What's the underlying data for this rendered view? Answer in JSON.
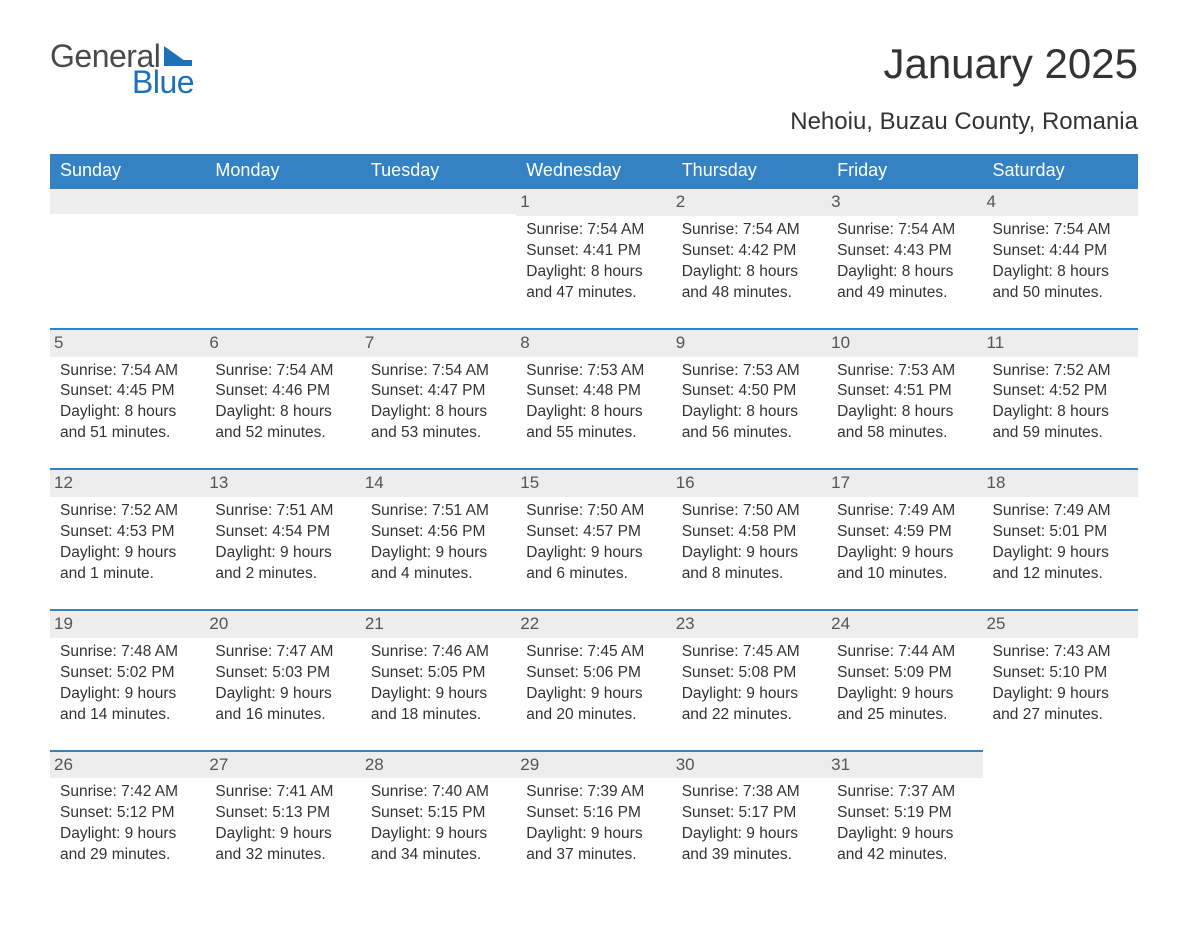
{
  "logo": {
    "text_general": "General",
    "text_blue": "Blue",
    "color_text_gray": "#4a4a4a",
    "color_blue": "#1e70b8"
  },
  "title": "January 2025",
  "subtitle": "Nehoiu, Buzau County, Romania",
  "day_headers": [
    "Sunday",
    "Monday",
    "Tuesday",
    "Wednesday",
    "Thursday",
    "Friday",
    "Saturday"
  ],
  "colors": {
    "header_bg": "#3481c4",
    "header_text": "#ffffff",
    "daynum_bg": "#ededed",
    "body_text": "#333333",
    "border": "#3481c4",
    "background": "#ffffff"
  },
  "typography": {
    "title_fontsize": 42,
    "subtitle_fontsize": 24,
    "header_fontsize": 18,
    "cell_fontsize": 15.5,
    "font_family": "Arial"
  },
  "weeks": [
    [
      null,
      null,
      null,
      {
        "day": "1",
        "sunrise": "Sunrise: 7:54 AM",
        "sunset": "Sunset: 4:41 PM",
        "daylight": "Daylight: 8 hours and 47 minutes."
      },
      {
        "day": "2",
        "sunrise": "Sunrise: 7:54 AM",
        "sunset": "Sunset: 4:42 PM",
        "daylight": "Daylight: 8 hours and 48 minutes."
      },
      {
        "day": "3",
        "sunrise": "Sunrise: 7:54 AM",
        "sunset": "Sunset: 4:43 PM",
        "daylight": "Daylight: 8 hours and 49 minutes."
      },
      {
        "day": "4",
        "sunrise": "Sunrise: 7:54 AM",
        "sunset": "Sunset: 4:44 PM",
        "daylight": "Daylight: 8 hours and 50 minutes."
      }
    ],
    [
      {
        "day": "5",
        "sunrise": "Sunrise: 7:54 AM",
        "sunset": "Sunset: 4:45 PM",
        "daylight": "Daylight: 8 hours and 51 minutes."
      },
      {
        "day": "6",
        "sunrise": "Sunrise: 7:54 AM",
        "sunset": "Sunset: 4:46 PM",
        "daylight": "Daylight: 8 hours and 52 minutes."
      },
      {
        "day": "7",
        "sunrise": "Sunrise: 7:54 AM",
        "sunset": "Sunset: 4:47 PM",
        "daylight": "Daylight: 8 hours and 53 minutes."
      },
      {
        "day": "8",
        "sunrise": "Sunrise: 7:53 AM",
        "sunset": "Sunset: 4:48 PM",
        "daylight": "Daylight: 8 hours and 55 minutes."
      },
      {
        "day": "9",
        "sunrise": "Sunrise: 7:53 AM",
        "sunset": "Sunset: 4:50 PM",
        "daylight": "Daylight: 8 hours and 56 minutes."
      },
      {
        "day": "10",
        "sunrise": "Sunrise: 7:53 AM",
        "sunset": "Sunset: 4:51 PM",
        "daylight": "Daylight: 8 hours and 58 minutes."
      },
      {
        "day": "11",
        "sunrise": "Sunrise: 7:52 AM",
        "sunset": "Sunset: 4:52 PM",
        "daylight": "Daylight: 8 hours and 59 minutes."
      }
    ],
    [
      {
        "day": "12",
        "sunrise": "Sunrise: 7:52 AM",
        "sunset": "Sunset: 4:53 PM",
        "daylight": "Daylight: 9 hours and 1 minute."
      },
      {
        "day": "13",
        "sunrise": "Sunrise: 7:51 AM",
        "sunset": "Sunset: 4:54 PM",
        "daylight": "Daylight: 9 hours and 2 minutes."
      },
      {
        "day": "14",
        "sunrise": "Sunrise: 7:51 AM",
        "sunset": "Sunset: 4:56 PM",
        "daylight": "Daylight: 9 hours and 4 minutes."
      },
      {
        "day": "15",
        "sunrise": "Sunrise: 7:50 AM",
        "sunset": "Sunset: 4:57 PM",
        "daylight": "Daylight: 9 hours and 6 minutes."
      },
      {
        "day": "16",
        "sunrise": "Sunrise: 7:50 AM",
        "sunset": "Sunset: 4:58 PM",
        "daylight": "Daylight: 9 hours and 8 minutes."
      },
      {
        "day": "17",
        "sunrise": "Sunrise: 7:49 AM",
        "sunset": "Sunset: 4:59 PM",
        "daylight": "Daylight: 9 hours and 10 minutes."
      },
      {
        "day": "18",
        "sunrise": "Sunrise: 7:49 AM",
        "sunset": "Sunset: 5:01 PM",
        "daylight": "Daylight: 9 hours and 12 minutes."
      }
    ],
    [
      {
        "day": "19",
        "sunrise": "Sunrise: 7:48 AM",
        "sunset": "Sunset: 5:02 PM",
        "daylight": "Daylight: 9 hours and 14 minutes."
      },
      {
        "day": "20",
        "sunrise": "Sunrise: 7:47 AM",
        "sunset": "Sunset: 5:03 PM",
        "daylight": "Daylight: 9 hours and 16 minutes."
      },
      {
        "day": "21",
        "sunrise": "Sunrise: 7:46 AM",
        "sunset": "Sunset: 5:05 PM",
        "daylight": "Daylight: 9 hours and 18 minutes."
      },
      {
        "day": "22",
        "sunrise": "Sunrise: 7:45 AM",
        "sunset": "Sunset: 5:06 PM",
        "daylight": "Daylight: 9 hours and 20 minutes."
      },
      {
        "day": "23",
        "sunrise": "Sunrise: 7:45 AM",
        "sunset": "Sunset: 5:08 PM",
        "daylight": "Daylight: 9 hours and 22 minutes."
      },
      {
        "day": "24",
        "sunrise": "Sunrise: 7:44 AM",
        "sunset": "Sunset: 5:09 PM",
        "daylight": "Daylight: 9 hours and 25 minutes."
      },
      {
        "day": "25",
        "sunrise": "Sunrise: 7:43 AM",
        "sunset": "Sunset: 5:10 PM",
        "daylight": "Daylight: 9 hours and 27 minutes."
      }
    ],
    [
      {
        "day": "26",
        "sunrise": "Sunrise: 7:42 AM",
        "sunset": "Sunset: 5:12 PM",
        "daylight": "Daylight: 9 hours and 29 minutes."
      },
      {
        "day": "27",
        "sunrise": "Sunrise: 7:41 AM",
        "sunset": "Sunset: 5:13 PM",
        "daylight": "Daylight: 9 hours and 32 minutes."
      },
      {
        "day": "28",
        "sunrise": "Sunrise: 7:40 AM",
        "sunset": "Sunset: 5:15 PM",
        "daylight": "Daylight: 9 hours and 34 minutes."
      },
      {
        "day": "29",
        "sunrise": "Sunrise: 7:39 AM",
        "sunset": "Sunset: 5:16 PM",
        "daylight": "Daylight: 9 hours and 37 minutes."
      },
      {
        "day": "30",
        "sunrise": "Sunrise: 7:38 AM",
        "sunset": "Sunset: 5:17 PM",
        "daylight": "Daylight: 9 hours and 39 minutes."
      },
      {
        "day": "31",
        "sunrise": "Sunrise: 7:37 AM",
        "sunset": "Sunset: 5:19 PM",
        "daylight": "Daylight: 9 hours and 42 minutes."
      },
      null
    ]
  ]
}
